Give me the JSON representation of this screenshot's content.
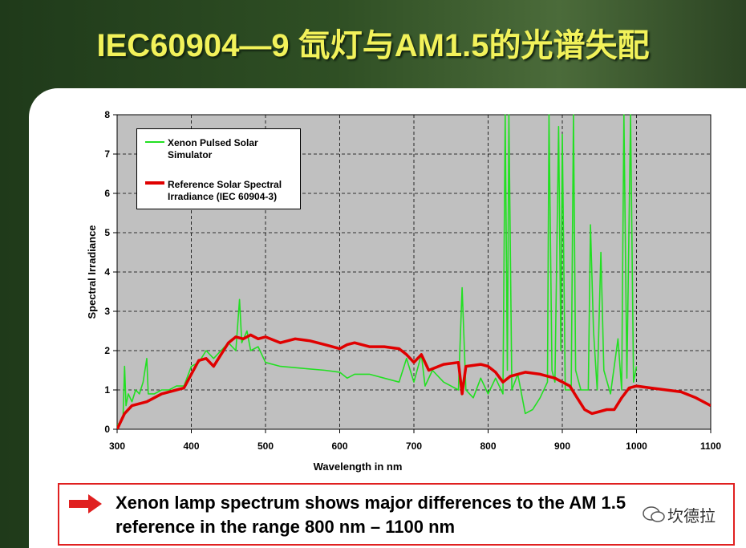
{
  "slide_title": "IEC60904—9 氙灯与AM1.5的光谱失配",
  "chart_data": {
    "type": "line",
    "xlabel": "Wavelength in nm",
    "ylabel": "Spectral Irradiance",
    "xlim": [
      300,
      1100
    ],
    "xticks": [
      300,
      400,
      500,
      600,
      700,
      800,
      900,
      1000,
      1100
    ],
    "ylim": [
      0,
      8
    ],
    "yticks": [
      0,
      1,
      2,
      3,
      4,
      5,
      6,
      7,
      8
    ],
    "grid": true,
    "series": [
      {
        "name": "Xenon Pulsed Solar Simulator",
        "color": "#22e022",
        "x": [
          300,
          305,
          308,
          310,
          312,
          315,
          320,
          325,
          330,
          335,
          340,
          342,
          350,
          360,
          370,
          380,
          390,
          400,
          410,
          420,
          430,
          440,
          450,
          460,
          465,
          468,
          475,
          480,
          490,
          500,
          520,
          550,
          580,
          600,
          610,
          620,
          640,
          660,
          680,
          690,
          700,
          710,
          715,
          725,
          740,
          760,
          765,
          770,
          780,
          790,
          800,
          810,
          820,
          823,
          826,
          828,
          832,
          840,
          850,
          860,
          870,
          880,
          882,
          886,
          890,
          895,
          898,
          900,
          904,
          912,
          915,
          918,
          925,
          935,
          938,
          942,
          947,
          952,
          956,
          965,
          975,
          980,
          983,
          987,
          992,
          996,
          1000
        ],
        "values": [
          0.1,
          0.2,
          0.3,
          1.6,
          0.6,
          0.9,
          0.7,
          1.0,
          0.9,
          1.2,
          1.8,
          0.9,
          0.9,
          1.0,
          1.0,
          1.1,
          1.1,
          1.6,
          1.7,
          2.0,
          1.8,
          2.0,
          2.2,
          2.0,
          3.3,
          2.2,
          2.5,
          2.0,
          2.1,
          1.7,
          1.6,
          1.55,
          1.5,
          1.45,
          1.3,
          1.4,
          1.4,
          1.3,
          1.2,
          1.8,
          1.2,
          1.9,
          1.1,
          1.5,
          1.2,
          1.0,
          3.6,
          1.0,
          0.8,
          1.3,
          0.9,
          1.3,
          0.9,
          8.0,
          1.5,
          8.0,
          1.0,
          1.4,
          0.4,
          0.5,
          0.8,
          1.2,
          8.0,
          1.5,
          1.2,
          7.7,
          2.0,
          7.5,
          1.0,
          1.0,
          8.0,
          1.5,
          1.0,
          1.0,
          5.2,
          2.5,
          1.0,
          4.5,
          1.5,
          0.9,
          2.3,
          1.0,
          8.0,
          1.3,
          8.0,
          1.2,
          1.6
        ]
      },
      {
        "name": "Reference Solar Spectral Irradiance (IEC 60904-3)",
        "color": "#e00000",
        "x": [
          300,
          310,
          320,
          340,
          360,
          380,
          390,
          400,
          410,
          420,
          430,
          440,
          450,
          460,
          470,
          480,
          490,
          500,
          520,
          540,
          560,
          580,
          600,
          610,
          620,
          640,
          660,
          680,
          690,
          700,
          710,
          720,
          740,
          760,
          765,
          770,
          790,
          800,
          810,
          820,
          830,
          850,
          870,
          890,
          910,
          920,
          930,
          940,
          950,
          960,
          970,
          980,
          990,
          1000,
          1020,
          1040,
          1060,
          1080,
          1100
        ],
        "values": [
          0,
          0.4,
          0.6,
          0.7,
          0.9,
          1.0,
          1.05,
          1.4,
          1.75,
          1.8,
          1.6,
          1.9,
          2.2,
          2.35,
          2.3,
          2.4,
          2.3,
          2.35,
          2.2,
          2.3,
          2.25,
          2.15,
          2.05,
          2.15,
          2.2,
          2.1,
          2.1,
          2.05,
          1.9,
          1.7,
          1.9,
          1.5,
          1.65,
          1.7,
          0.9,
          1.6,
          1.65,
          1.6,
          1.45,
          1.2,
          1.35,
          1.45,
          1.4,
          1.3,
          1.1,
          0.8,
          0.5,
          0.4,
          0.45,
          0.5,
          0.5,
          0.8,
          1.05,
          1.1,
          1.05,
          1.0,
          0.95,
          0.8,
          0.6
        ]
      }
    ]
  },
  "caption": "Xenon lamp spectrum shows major differences to the AM 1.5 reference in the range 800 nm – 1100 nm",
  "watermark": "坎德拉"
}
